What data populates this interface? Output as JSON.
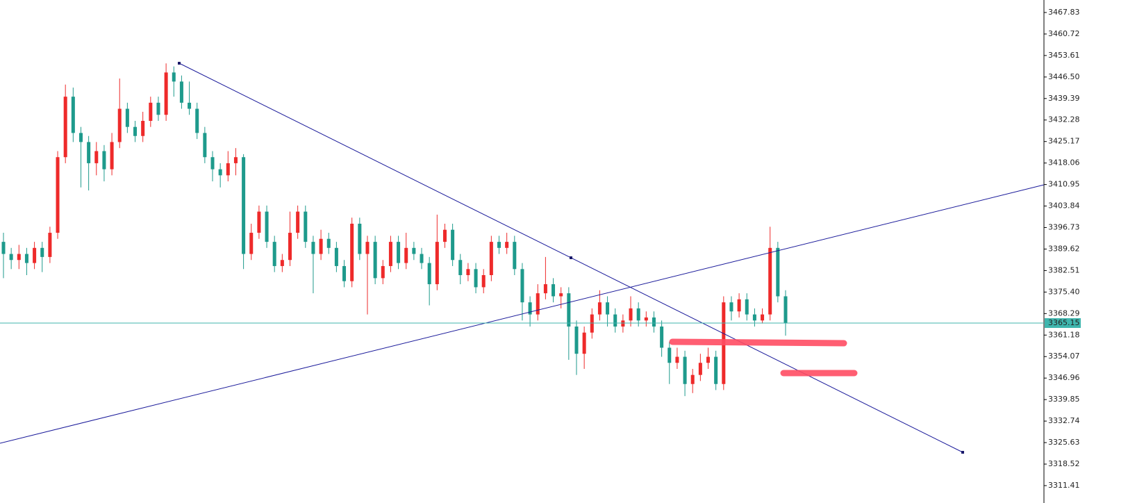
{
  "chart_data": {
    "type": "candlestick",
    "ylim": [
      3305.66,
      3471.96
    ],
    "yticks": [
      3467.83,
      3460.72,
      3453.61,
      {
        "value": 3446.5,
        "label": "3446.50"
      },
      3439.39,
      3432.28,
      3425.17,
      3418.06,
      3410.95,
      3403.84,
      3396.73,
      3389.62,
      3382.51,
      {
        "value": 3375.4,
        "label": "3375.40"
      },
      3368.29,
      3361.18,
      3354.07,
      3346.96,
      3339.85,
      3332.74,
      3325.63,
      3318.52,
      3311.41
    ],
    "last_price": 3365.15,
    "up_color": "#ee2a2a",
    "down_color": "#1e9a8c",
    "last_price_color": "#3fb6ae",
    "open": [
      3392,
      3388,
      3386,
      3388,
      3385,
      3390,
      3387,
      3395,
      3420,
      3440,
      3428,
      3425,
      3418,
      3422,
      3416,
      3425,
      3436,
      3430,
      3427,
      3432,
      3438,
      3434,
      3448,
      3445,
      3438,
      3436,
      3428,
      3420,
      3416,
      3414,
      3418,
      3420,
      3388,
      3395,
      3402,
      3392,
      3384,
      3386,
      3395,
      3402,
      3392,
      3388,
      3393,
      3390,
      3384,
      3379,
      3398,
      3388,
      3392,
      3380,
      3384,
      3392,
      3385,
      3390,
      3388,
      3385,
      3378,
      3392,
      3396,
      3386,
      3381,
      3383,
      3377,
      3381,
      3392,
      3390,
      3392,
      3383,
      3372,
      3368,
      3375,
      3378,
      3374,
      3375,
      3364,
      3355,
      3362,
      3368,
      3372,
      3368,
      3364,
      3366,
      3370,
      3366,
      3367,
      3364,
      3357,
      3352,
      3354,
      3345,
      3348,
      3352,
      3354,
      3345,
      3372,
      3369,
      3373,
      3368,
      3366,
      3368,
      3390,
      3374
    ],
    "high": [
      3395,
      3390,
      3391,
      3390,
      3392,
      3392,
      3397,
      3422,
      3444,
      3443,
      3430,
      3427,
      3425,
      3424,
      3428,
      3446,
      3438,
      3432,
      3435,
      3440,
      3440,
      3451,
      3450,
      3447,
      3445,
      3438,
      3430,
      3422,
      3418,
      3422,
      3423,
      3421,
      3398,
      3404,
      3404,
      3394,
      3388,
      3402,
      3404,
      3404,
      3394,
      3396,
      3395,
      3392,
      3386,
      3400,
      3400,
      3394,
      3394,
      3386,
      3394,
      3394,
      3395,
      3392,
      3390,
      3387,
      3401,
      3398,
      3398,
      3388,
      3385,
      3385,
      3383,
      3394,
      3394,
      3395,
      3394,
      3385,
      3374,
      3378,
      3387,
      3380,
      3377,
      3377,
      3366,
      3364,
      3370,
      3376,
      3374,
      3370,
      3368,
      3374,
      3372,
      3369,
      3369,
      3366,
      3359,
      3357,
      3356,
      3350,
      3355,
      3357,
      3356,
      3374,
      3374,
      3375,
      3375,
      3370,
      3370,
      3397,
      3392,
      3376
    ],
    "low": [
      3380,
      3383,
      3383,
      3381,
      3383,
      3382,
      3385,
      3393,
      3418,
      3425,
      3410,
      3409,
      3414,
      3412,
      3414,
      3423,
      3428,
      3425,
      3425,
      3430,
      3432,
      3432,
      3440,
      3436,
      3434,
      3426,
      3418,
      3412,
      3410,
      3412,
      3414,
      3383,
      3386,
      3393,
      3390,
      3382,
      3382,
      3384,
      3393,
      3390,
      3375,
      3386,
      3388,
      3382,
      3377,
      3377,
      3386,
      3368,
      3378,
      3378,
      3382,
      3383,
      3383,
      3386,
      3383,
      3371,
      3376,
      3390,
      3384,
      3378,
      3379,
      3375,
      3375,
      3379,
      3388,
      3388,
      3381,
      3366,
      3364,
      3366,
      3373,
      3372,
      3370,
      3353,
      3348,
      3350,
      3360,
      3366,
      3364,
      3362,
      3362,
      3364,
      3364,
      3364,
      3362,
      3354,
      3345,
      3350,
      3341,
      3342,
      3346,
      3350,
      3343,
      3343,
      3366,
      3367,
      3366,
      3364,
      3365,
      3366,
      3372,
      3361
    ],
    "close": [
      3388,
      3386,
      3388,
      3385,
      3390,
      3387,
      3395,
      3420,
      3440,
      3428,
      3425,
      3418,
      3422,
      3416,
      3425,
      3436,
      3430,
      3427,
      3432,
      3438,
      3434,
      3448,
      3445,
      3438,
      3436,
      3428,
      3420,
      3416,
      3414,
      3418,
      3420,
      3388,
      3395,
      3402,
      3392,
      3384,
      3386,
      3395,
      3402,
      3392,
      3388,
      3393,
      3390,
      3384,
      3379,
      3398,
      3388,
      3392,
      3380,
      3384,
      3392,
      3385,
      3390,
      3388,
      3385,
      3378,
      3392,
      3396,
      3386,
      3381,
      3383,
      3377,
      3381,
      3392,
      3390,
      3392,
      3383,
      3372,
      3368,
      3375,
      3378,
      3374,
      3375,
      3364,
      3355,
      3362,
      3368,
      3372,
      3368,
      3364,
      3366,
      3370,
      3366,
      3367,
      3364,
      3357,
      3352,
      3354,
      3345,
      3348,
      3352,
      3354,
      3345,
      3372,
      3369,
      3373,
      3368,
      3366,
      3368,
      3390,
      3374,
      3365.15
    ]
  }
}
